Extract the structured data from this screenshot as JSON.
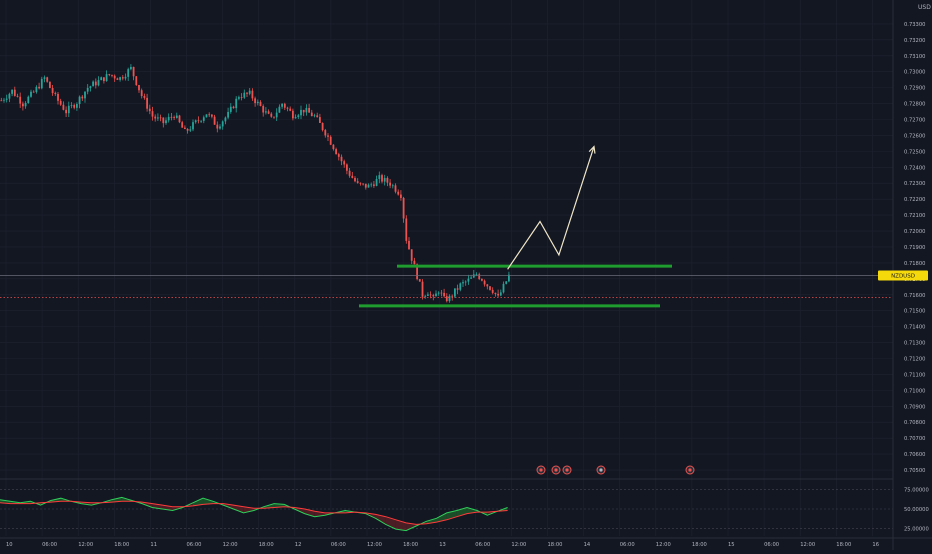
{
  "colors": {
    "background": "#131722",
    "grid": "#1f2331",
    "axis_text": "#b2b5be",
    "candle_up": "#26a69a",
    "candle_down": "#ef5350",
    "support_line": "#1f9d2f",
    "projection": "#f0e6c8",
    "price_label_bg": "#f5d90a",
    "price_label_text": "#131722",
    "last_price_line": "#6a6d78",
    "red_dotted_line": "#ef5350",
    "osc_green": "#2fd05a",
    "osc_red": "#ff3b3b",
    "osc_band_green": "#1e5b2c",
    "osc_band_red": "#5a1f26"
  },
  "chart_data": [
    {
      "type": "candlestick",
      "symbol": "NZDUSD",
      "price_axis_unit": "USD",
      "ylim": [
        0.7045,
        0.7345
      ],
      "y_ticks": [
        "0.73300",
        "0.73200",
        "0.73100",
        "0.73000",
        "0.72900",
        "0.72800",
        "0.72700",
        "0.72600",
        "0.72500",
        "0.72400",
        "0.72300",
        "0.72200",
        "0.72100",
        "0.72000",
        "0.71900",
        "0.71800",
        "0.71700",
        "0.71600",
        "0.71500",
        "0.71400",
        "0.71300",
        "0.71200",
        "0.71100",
        "0.71000",
        "0.70900",
        "0.70800",
        "0.70700",
        "0.70600",
        "0.70500"
      ],
      "x_ticks": [
        "10",
        "06:00",
        "12:00",
        "18:00",
        "11",
        "06:00",
        "12:00",
        "18:00",
        "12",
        "06:00",
        "12:00",
        "18:00",
        "13",
        "06:00",
        "12:00",
        "18:00",
        "14",
        "06:00",
        "12:00",
        "18:00",
        "15",
        "06:00",
        "12:00",
        "18:00",
        "16"
      ],
      "price_series": [
        {
          "bar": 0,
          "price": 0.7282
        },
        {
          "bar": 4,
          "price": 0.7288
        },
        {
          "bar": 8,
          "price": 0.728
        },
        {
          "bar": 12,
          "price": 0.7287
        },
        {
          "bar": 16,
          "price": 0.7296
        },
        {
          "bar": 20,
          "price": 0.7284
        },
        {
          "bar": 24,
          "price": 0.7275
        },
        {
          "bar": 28,
          "price": 0.7281
        },
        {
          "bar": 32,
          "price": 0.729
        },
        {
          "bar": 36,
          "price": 0.7294
        },
        {
          "bar": 40,
          "price": 0.7298
        },
        {
          "bar": 44,
          "price": 0.7296
        },
        {
          "bar": 48,
          "price": 0.7302
        },
        {
          "bar": 52,
          "price": 0.7285
        },
        {
          "bar": 56,
          "price": 0.7272
        },
        {
          "bar": 60,
          "price": 0.7268
        },
        {
          "bar": 64,
          "price": 0.7273
        },
        {
          "bar": 68,
          "price": 0.7262
        },
        {
          "bar": 72,
          "price": 0.7268
        },
        {
          "bar": 76,
          "price": 0.7274
        },
        {
          "bar": 80,
          "price": 0.7266
        },
        {
          "bar": 84,
          "price": 0.7273
        },
        {
          "bar": 88,
          "price": 0.7285
        },
        {
          "bar": 92,
          "price": 0.7286
        },
        {
          "bar": 96,
          "price": 0.7278
        },
        {
          "bar": 100,
          "price": 0.727
        },
        {
          "bar": 104,
          "price": 0.728
        },
        {
          "bar": 108,
          "price": 0.7273
        },
        {
          "bar": 112,
          "price": 0.7276
        },
        {
          "bar": 116,
          "price": 0.7272
        },
        {
          "bar": 120,
          "price": 0.7262
        },
        {
          "bar": 124,
          "price": 0.725
        },
        {
          "bar": 128,
          "price": 0.7238
        },
        {
          "bar": 132,
          "price": 0.7229
        },
        {
          "bar": 136,
          "price": 0.7228
        },
        {
          "bar": 140,
          "price": 0.7233
        },
        {
          "bar": 144,
          "price": 0.723
        },
        {
          "bar": 148,
          "price": 0.7223
        },
        {
          "bar": 150,
          "price": 0.7195
        },
        {
          "bar": 152,
          "price": 0.7183
        },
        {
          "bar": 154,
          "price": 0.7172
        },
        {
          "bar": 156,
          "price": 0.716
        },
        {
          "bar": 158,
          "price": 0.7162
        },
        {
          "bar": 160,
          "price": 0.7157
        },
        {
          "bar": 162,
          "price": 0.7163
        },
        {
          "bar": 164,
          "price": 0.7157
        },
        {
          "bar": 166,
          "price": 0.7158
        },
        {
          "bar": 168,
          "price": 0.7162
        },
        {
          "bar": 170,
          "price": 0.7166
        },
        {
          "bar": 172,
          "price": 0.7168
        },
        {
          "bar": 174,
          "price": 0.717
        },
        {
          "bar": 176,
          "price": 0.7173
        },
        {
          "bar": 178,
          "price": 0.717
        },
        {
          "bar": 180,
          "price": 0.7166
        },
        {
          "bar": 182,
          "price": 0.7163
        },
        {
          "bar": 184,
          "price": 0.7158
        },
        {
          "bar": 186,
          "price": 0.7165
        },
        {
          "bar": 188,
          "price": 0.7172
        }
      ],
      "last_price": 0.71721,
      "red_dotted_price": 0.71583,
      "annotations": {
        "resistance_zone_price": 0.7178,
        "support_zone_price": 0.7153,
        "projection_path": [
          {
            "bar": 188,
            "price": 0.7176
          },
          {
            "bar": 200,
            "price": 0.7206
          },
          {
            "bar": 207,
            "price": 0.7185
          },
          {
            "bar": 220,
            "price": 0.7253
          }
        ]
      }
    },
    {
      "type": "oscillator",
      "ylim": [
        15,
        85
      ],
      "y_ticks": [
        "75.00000",
        "50.00000",
        "25.00000"
      ],
      "series": [
        {
          "values": [
            62,
            60,
            58,
            60,
            55,
            61,
            64,
            60,
            57,
            55,
            58,
            62,
            65,
            61,
            57,
            52,
            50,
            48,
            52,
            58,
            64,
            60,
            55,
            50,
            45,
            48,
            53,
            57,
            56,
            50,
            44,
            40,
            42,
            45,
            48,
            46,
            44,
            38,
            30,
            24,
            22,
            28,
            34,
            38,
            45,
            48,
            52,
            48,
            42,
            47,
            52
          ]
        },
        {
          "values": [
            58,
            57,
            57,
            57,
            58,
            59,
            60,
            60,
            59,
            58,
            58,
            59,
            60,
            60,
            59,
            57,
            55,
            53,
            53,
            54,
            56,
            57,
            57,
            55,
            53,
            51,
            51,
            52,
            53,
            52,
            50,
            47,
            45,
            45,
            45,
            46,
            45,
            43,
            40,
            36,
            32,
            30,
            31,
            33,
            36,
            40,
            44,
            46,
            46,
            47,
            48
          ]
        }
      ]
    }
  ]
}
